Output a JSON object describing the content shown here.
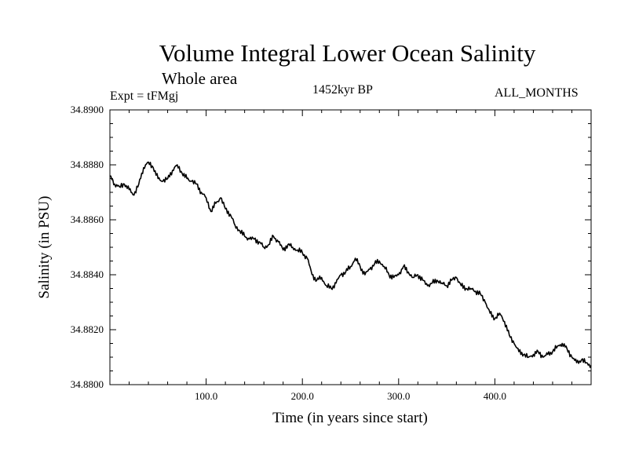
{
  "chart_data": {
    "type": "line",
    "title": "Volume Integral Lower Ocean Salinity",
    "subtitle": "Whole area",
    "experiment_label": "Expt = tFMgj",
    "center_label": "1452kyr BP",
    "right_label": "ALL_MONTHS",
    "xlabel": "Time (in years since start)",
    "ylabel": "Salinity (in PSU)",
    "xlim": [
      0,
      500
    ],
    "ylim": [
      34.88,
      34.89
    ],
    "x_ticks": [
      100,
      200,
      300,
      400
    ],
    "x_tick_labels": [
      "100.0",
      "200.0",
      "300.0",
      "400.0"
    ],
    "y_ticks": [
      34.88,
      34.882,
      34.884,
      34.886,
      34.888,
      34.89
    ],
    "y_tick_labels": [
      "34.8800",
      "34.8820",
      "34.8840",
      "34.8860",
      "34.8880",
      "34.8900"
    ],
    "series": [
      {
        "name": "salinity",
        "x": [
          0,
          5,
          10,
          15,
          20,
          25,
          30,
          35,
          40,
          45,
          50,
          55,
          60,
          65,
          70,
          75,
          80,
          85,
          90,
          95,
          100,
          105,
          110,
          115,
          120,
          125,
          130,
          135,
          140,
          145,
          150,
          155,
          160,
          165,
          170,
          175,
          180,
          185,
          190,
          195,
          200,
          205,
          210,
          215,
          220,
          225,
          230,
          235,
          240,
          245,
          250,
          255,
          260,
          265,
          270,
          275,
          280,
          285,
          290,
          295,
          300,
          305,
          310,
          315,
          320,
          325,
          330,
          335,
          340,
          345,
          350,
          355,
          360,
          365,
          370,
          375,
          380,
          385,
          390,
          395,
          400,
          405,
          410,
          415,
          420,
          425,
          430,
          435,
          440,
          445,
          450,
          455,
          460,
          465,
          470,
          475,
          480,
          485,
          490,
          495,
          500
        ],
        "values": [
          34.8876,
          34.8873,
          34.8872,
          34.8873,
          34.8871,
          34.8869,
          34.8873,
          34.8879,
          34.8881,
          34.8879,
          34.8875,
          34.8874,
          34.8875,
          34.8878,
          34.888,
          34.8877,
          34.8875,
          34.8874,
          34.8873,
          34.887,
          34.8868,
          34.8863,
          34.8866,
          34.8868,
          34.8864,
          34.8862,
          34.8858,
          34.8856,
          34.8854,
          34.8853,
          34.8853,
          34.8852,
          34.885,
          34.8851,
          34.8854,
          34.8852,
          34.8849,
          34.8851,
          34.885,
          34.8849,
          34.8848,
          34.8846,
          34.884,
          34.8838,
          34.8839,
          34.8836,
          34.8835,
          34.8837,
          34.884,
          34.8841,
          34.8843,
          34.8846,
          34.8843,
          34.884,
          34.8842,
          34.8844,
          34.8845,
          34.8843,
          34.884,
          34.8839,
          34.884,
          34.8843,
          34.8841,
          34.8839,
          34.884,
          34.8838,
          34.8836,
          34.8837,
          34.8838,
          34.8837,
          34.8836,
          34.8838,
          34.8839,
          34.8836,
          34.8835,
          34.8835,
          34.8834,
          34.8833,
          34.883,
          34.8826,
          34.8824,
          34.8826,
          34.8823,
          34.8818,
          34.8815,
          34.8812,
          34.8811,
          34.881,
          34.8811,
          34.8812,
          34.881,
          34.8811,
          34.8812,
          34.8814,
          34.8815,
          34.8813,
          34.881,
          34.8808,
          34.8809,
          34.8808,
          34.8807
        ]
      }
    ]
  }
}
